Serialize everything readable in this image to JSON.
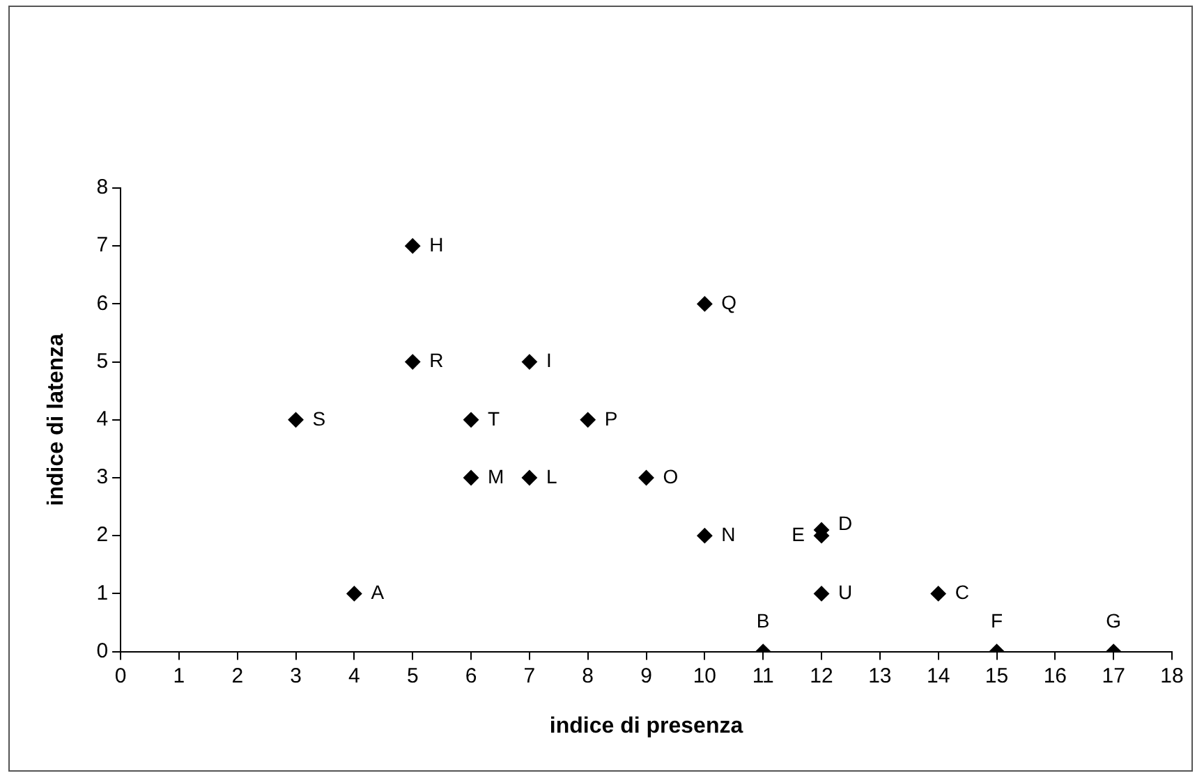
{
  "chart_data": {
    "type": "scatter",
    "xlabel": "indice di presenza",
    "ylabel": "indice di latenza",
    "x": [
      5,
      10,
      5,
      7,
      3,
      6,
      8,
      6,
      7,
      9,
      10,
      12,
      12,
      12,
      14,
      4,
      11,
      15,
      17
    ],
    "series": [
      {
        "color": "#000000",
        "values": [
          7,
          6,
          5,
          5,
          4,
          4,
          4,
          3,
          3,
          3,
          2,
          2,
          2.1,
          1,
          1,
          1,
          0,
          0,
          0
        ]
      }
    ],
    "marker": "diamond",
    "grid": false,
    "legend": false,
    "xlim": [
      0,
      18
    ],
    "xticks": [
      0,
      1,
      2,
      3,
      4,
      5,
      6,
      7,
      8,
      9,
      10,
      11,
      12,
      13,
      14,
      15,
      16,
      17,
      18
    ],
    "ylim": [
      0,
      8
    ],
    "yticks": [
      0,
      1,
      2,
      3,
      4,
      5,
      6,
      7,
      8
    ],
    "annotations": [
      {
        "text": "H",
        "x": 5,
        "y": 7
      },
      {
        "text": "Q",
        "x": 10,
        "y": 6
      },
      {
        "text": "R",
        "x": 5,
        "y": 5
      },
      {
        "text": "I",
        "x": 7,
        "y": 5
      },
      {
        "text": "S",
        "x": 3,
        "y": 4
      },
      {
        "text": "T",
        "x": 6,
        "y": 4
      },
      {
        "text": "P",
        "x": 8,
        "y": 4
      },
      {
        "text": "M",
        "x": 6,
        "y": 3
      },
      {
        "text": "L",
        "x": 7,
        "y": 3
      },
      {
        "text": "O",
        "x": 9,
        "y": 3
      },
      {
        "text": "N",
        "x": 10,
        "y": 2
      },
      {
        "text": "E",
        "x": 12,
        "y": 2
      },
      {
        "text": "D",
        "x": 12,
        "y": 2.1
      },
      {
        "text": "U",
        "x": 12,
        "y": 1
      },
      {
        "text": "C",
        "x": 14,
        "y": 1
      },
      {
        "text": "A",
        "x": 4,
        "y": 1
      },
      {
        "text": "B",
        "x": 11,
        "y": 0
      },
      {
        "text": "F",
        "x": 15,
        "y": 0
      },
      {
        "text": "G",
        "x": 17,
        "y": 0
      }
    ]
  }
}
